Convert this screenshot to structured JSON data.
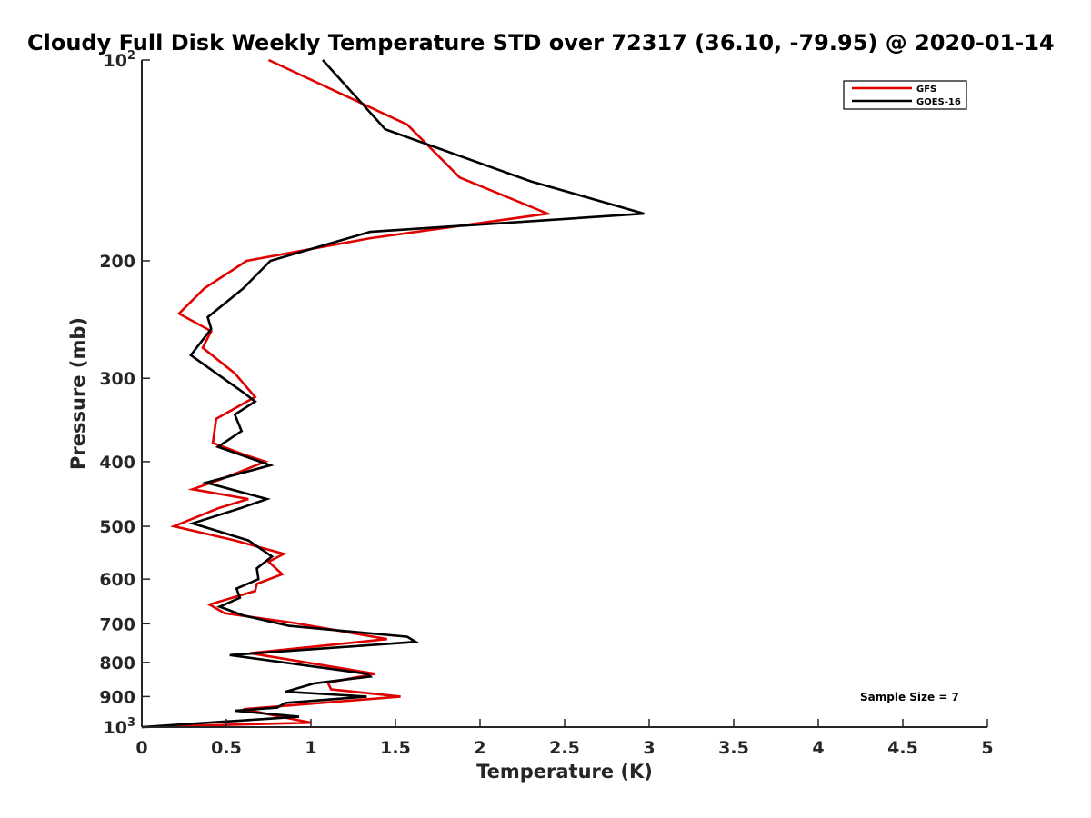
{
  "chart_data": {
    "type": "line",
    "title": "Cloudy Full Disk Weekly Temperature STD over 72317 (36.10, -79.95) @ 2020-01-14",
    "xlabel": "Temperature (K)",
    "ylabel": "Pressure (mb)",
    "xlim": [
      0,
      5
    ],
    "ylim": [
      1000,
      100
    ],
    "yscale": "log",
    "y_reversed": true,
    "grid": false,
    "legend_position": "top-right",
    "xticks": [
      {
        "value": 0,
        "label": "0"
      },
      {
        "value": 0.5,
        "label": "0.5"
      },
      {
        "value": 1,
        "label": "1"
      },
      {
        "value": 1.5,
        "label": "1.5"
      },
      {
        "value": 2,
        "label": "2"
      },
      {
        "value": 2.5,
        "label": "2.5"
      },
      {
        "value": 3,
        "label": "3"
      },
      {
        "value": 3.5,
        "label": "3.5"
      },
      {
        "value": 4,
        "label": "4"
      },
      {
        "value": 4.5,
        "label": "4.5"
      },
      {
        "value": 5,
        "label": "5"
      }
    ],
    "yticks": [
      {
        "value": 100,
        "label": "10",
        "sup": "2"
      },
      {
        "value": 200,
        "label": "200"
      },
      {
        "value": 300,
        "label": "300"
      },
      {
        "value": 400,
        "label": "400"
      },
      {
        "value": 500,
        "label": "500"
      },
      {
        "value": 600,
        "label": "600"
      },
      {
        "value": 700,
        "label": "700"
      },
      {
        "value": 800,
        "label": "800"
      },
      {
        "value": 900,
        "label": "900"
      },
      {
        "value": 1000,
        "label": "10",
        "sup": "3"
      }
    ],
    "series": [
      {
        "name": "GFS",
        "color": "#e00000",
        "points": [
          [
            0.75,
            100
          ],
          [
            1.57,
            125
          ],
          [
            1.88,
            150
          ],
          [
            2.4,
            170
          ],
          [
            1.35,
            185
          ],
          [
            0.62,
            200
          ],
          [
            0.37,
            220
          ],
          [
            0.22,
            240
          ],
          [
            0.41,
            255
          ],
          [
            0.36,
            270
          ],
          [
            0.55,
            295
          ],
          [
            0.67,
            320
          ],
          [
            0.44,
            345
          ],
          [
            0.42,
            375
          ],
          [
            0.6,
            390
          ],
          [
            0.73,
            400
          ],
          [
            0.47,
            425
          ],
          [
            0.3,
            440
          ],
          [
            0.63,
            455
          ],
          [
            0.45,
            470
          ],
          [
            0.19,
            500
          ],
          [
            0.55,
            525
          ],
          [
            0.84,
            550
          ],
          [
            0.75,
            565
          ],
          [
            0.83,
            590
          ],
          [
            0.68,
            610
          ],
          [
            0.67,
            625
          ],
          [
            0.4,
            655
          ],
          [
            0.49,
            675
          ],
          [
            0.9,
            698
          ],
          [
            1.45,
            738
          ],
          [
            0.64,
            775
          ],
          [
            1.38,
            832
          ],
          [
            1.1,
            858
          ],
          [
            1.12,
            878
          ],
          [
            1.53,
            900
          ],
          [
            0.6,
            940
          ],
          [
            1.0,
            985
          ],
          [
            0.0,
            1000
          ]
        ]
      },
      {
        "name": "GOES-16",
        "color": "#000000",
        "points": [
          [
            1.07,
            100
          ],
          [
            1.44,
            127
          ],
          [
            2.3,
            152
          ],
          [
            2.97,
            170
          ],
          [
            1.35,
            181
          ],
          [
            0.76,
            200
          ],
          [
            0.6,
            220
          ],
          [
            0.39,
            243
          ],
          [
            0.41,
            253
          ],
          [
            0.29,
            277
          ],
          [
            0.6,
            315
          ],
          [
            0.67,
            325
          ],
          [
            0.55,
            340
          ],
          [
            0.59,
            360
          ],
          [
            0.45,
            380
          ],
          [
            0.76,
            405
          ],
          [
            0.38,
            430
          ],
          [
            0.74,
            455
          ],
          [
            0.58,
            470
          ],
          [
            0.3,
            495
          ],
          [
            0.63,
            525
          ],
          [
            0.77,
            555
          ],
          [
            0.68,
            578
          ],
          [
            0.69,
            600
          ],
          [
            0.56,
            620
          ],
          [
            0.58,
            640
          ],
          [
            0.46,
            660
          ],
          [
            0.6,
            680
          ],
          [
            0.87,
            705
          ],
          [
            1.57,
            732
          ],
          [
            1.62,
            745
          ],
          [
            0.52,
            780
          ],
          [
            1.33,
            832
          ],
          [
            1.35,
            840
          ],
          [
            1.02,
            860
          ],
          [
            0.85,
            885
          ],
          [
            1.33,
            900
          ],
          [
            0.85,
            920
          ],
          [
            0.8,
            935
          ],
          [
            0.55,
            945
          ],
          [
            0.93,
            965
          ],
          [
            0.0,
            1000
          ]
        ]
      }
    ],
    "annotation": "Sample Size = 7"
  }
}
